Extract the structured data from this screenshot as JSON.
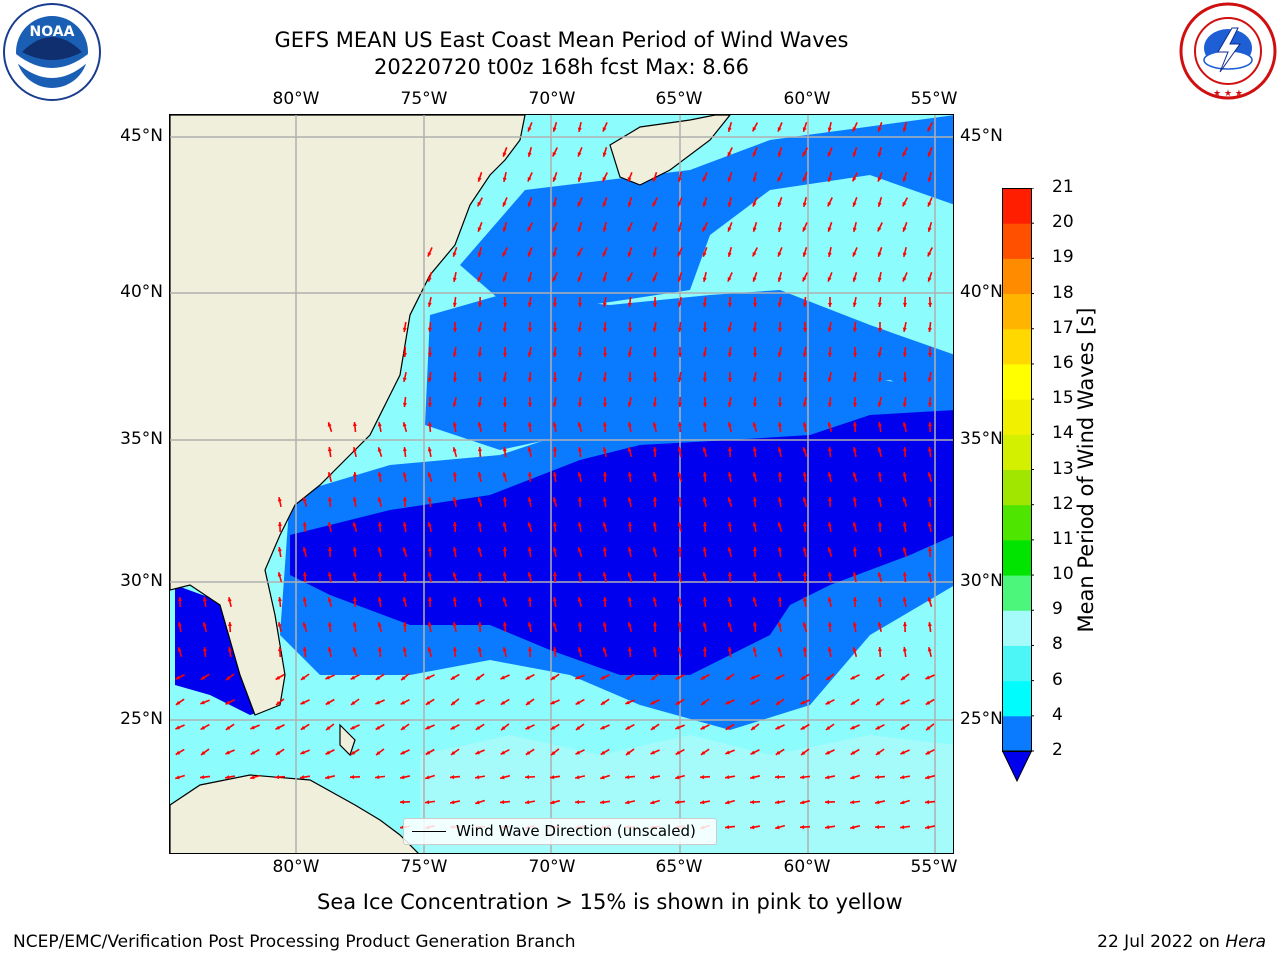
{
  "title": {
    "line1": "GEFS MEAN US East Coast Mean Period of Wind Waves",
    "line2": "20220720 t00z 168h fcst   Max: 8.66"
  },
  "logos": {
    "left": "NOAA",
    "left_ring": "NATIONAL OCEANIC AND ATMOSPHERIC ADMINISTRATION · U.S. DEPARTMENT OF COMMERCE",
    "right_ring": "NATIONAL WEATHER SERVICE"
  },
  "map": {
    "lon_labels": [
      "80°W",
      "75°W",
      "70°W",
      "65°W",
      "60°W",
      "55°W"
    ],
    "lat_labels": [
      "45°N",
      "40°N",
      "35°N",
      "30°N",
      "25°N"
    ],
    "colors": {
      "land": "#efefdb",
      "ocean_base": "#8cfcfc",
      "band_2_4": "#0a7bff",
      "band_4_6": "#00fcfc",
      "band_6_8": "#4cf6f6",
      "band_8_9": "#a5fafa",
      "below_2": "#0000ee",
      "arrow": "#ff0000",
      "grid": "#b0b0b0"
    },
    "legend_label": "Wind Wave Direction (unscaled)"
  },
  "colorbar": {
    "label": "Mean Period of Wind Waves [s]",
    "ticks": [
      "2",
      "4",
      "6",
      "8",
      "9",
      "10",
      "11",
      "12",
      "13",
      "14",
      "15",
      "16",
      "17",
      "18",
      "19",
      "20",
      "21"
    ],
    "segment_colors": [
      "#0a7bff",
      "#00fcfc",
      "#4cf6f6",
      "#a5fafa",
      "#4cf67a",
      "#00e400",
      "#4ee600",
      "#a0e600",
      "#d2f000",
      "#f0f000",
      "#ffff00",
      "#ffd800",
      "#ffb400",
      "#ff8c00",
      "#ff5000",
      "#ff1e00"
    ],
    "extend_color": "#0000ee"
  },
  "caption": "Sea Ice Concentration > 15% is shown in pink to yellow",
  "footer": {
    "left": "NCEP/EMC/Verification Post Processing Product Generation Branch",
    "date": "22 Jul 2022 on ",
    "machine": "Hera"
  }
}
